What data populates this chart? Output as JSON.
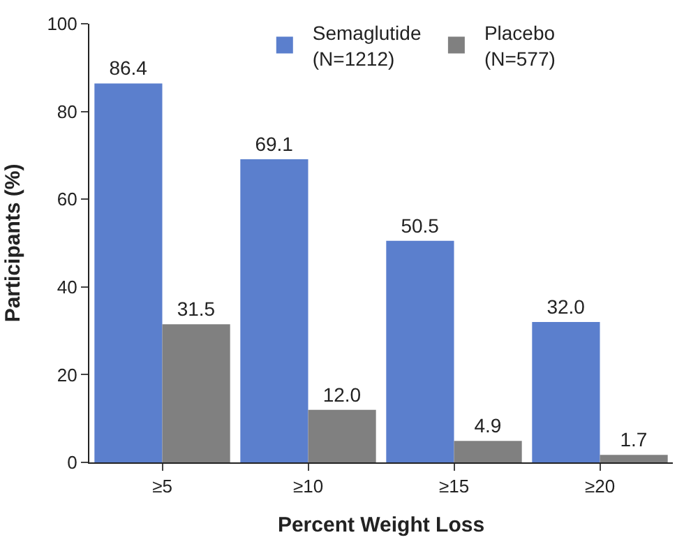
{
  "chart_data": {
    "type": "bar",
    "xlabel": "Percent Weight Loss",
    "ylabel": "Participants (%)",
    "categories": [
      "≥5",
      "≥10",
      "≥15",
      "≥20"
    ],
    "series": [
      {
        "name": "Semaglutide\n(N=1212)",
        "color": "#5b7fcd",
        "values": [
          86.4,
          69.1,
          50.5,
          32.0
        ],
        "value_labels": [
          "86.4",
          "69.1",
          "50.5",
          "32.0"
        ]
      },
      {
        "name": "Placebo\n(N=577)",
        "color": "#808080",
        "values": [
          31.5,
          12.0,
          4.9,
          1.7
        ],
        "value_labels": [
          "31.5",
          "12.0",
          "4.9",
          "1.7"
        ]
      }
    ],
    "ylim": [
      0,
      100
    ],
    "yticks": [
      0,
      20,
      40,
      60,
      80,
      100
    ],
    "legend": "top"
  }
}
